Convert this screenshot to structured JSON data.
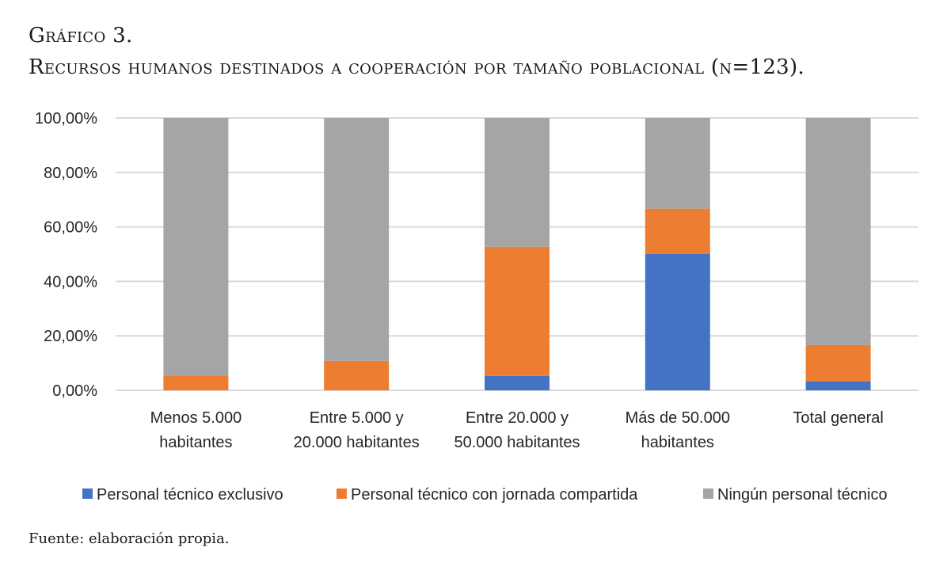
{
  "caption": {
    "label": "Gráfico 3.",
    "title": "Recursos humanos destinados a cooperación por tamaño poblacional (n=123)."
  },
  "source": "Fuente: elaboración propia.",
  "chart_data": {
    "type": "bar",
    "stacked": true,
    "title": "Recursos humanos destinados a cooperación por tamaño poblacional (n=123).",
    "xlabel": "",
    "ylabel": "",
    "ylim": [
      0,
      100
    ],
    "yticks": [
      0,
      20,
      40,
      60,
      80,
      100
    ],
    "ytick_labels": [
      "0,00%",
      "20,00%",
      "40,00%",
      "60,00%",
      "80,00%",
      "100,00%"
    ],
    "grid": true,
    "legend_position": "bottom",
    "categories": [
      [
        "Menos 5.000",
        "habitantes"
      ],
      [
        "Entre 5.000 y",
        "20.000 habitantes"
      ],
      [
        "Entre 20.000 y",
        "50.000 habitantes"
      ],
      [
        "Más de 50.000",
        "habitantes"
      ],
      [
        "Total general"
      ]
    ],
    "series": [
      {
        "name": "Personal técnico exclusivo",
        "color": "#4472c4",
        "values": [
          0,
          0,
          5.3,
          50.0,
          3.3
        ]
      },
      {
        "name": "Personal técnico con jornada compartida",
        "color": "#ed7d31",
        "values": [
          5.4,
          10.8,
          47.4,
          16.67,
          13.3
        ]
      },
      {
        "name": "Ningún personal técnico",
        "color": "#a5a5a5",
        "values": [
          94.6,
          89.2,
          47.3,
          33.33,
          83.4
        ]
      }
    ]
  }
}
